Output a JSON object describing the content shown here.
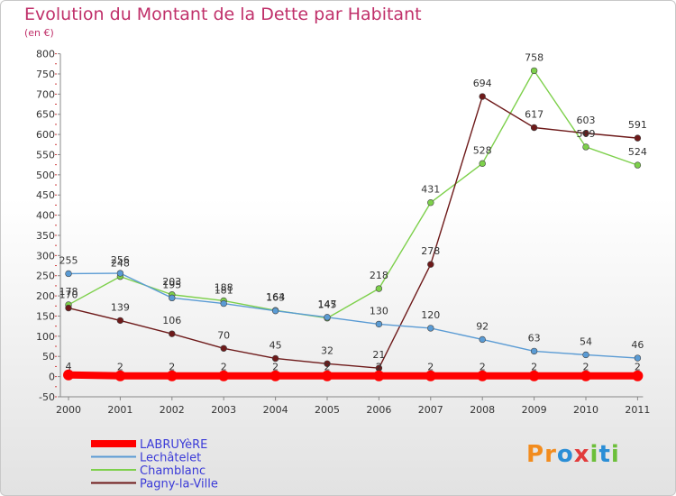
{
  "title": "Evolution du Montant de la Dette par Habitant",
  "subtitle": "(en €)",
  "logo": {
    "letters": [
      "P",
      "r",
      "o",
      "x",
      "i",
      "t",
      "i"
    ],
    "colors": [
      "#f28c1e",
      "#f28c1e",
      "#2a8ed6",
      "#e23b3b",
      "#6cbf3a",
      "#2a8ed6",
      "#6cbf3a"
    ]
  },
  "chart_data": {
    "type": "line",
    "x": [
      "2000",
      "2001",
      "2002",
      "2003",
      "2004",
      "2005",
      "2006",
      "2007",
      "2008",
      "2009",
      "2010",
      "2011"
    ],
    "ylim": [
      -50,
      800
    ],
    "ystep": 50,
    "grid": false,
    "legend": "bottom-left",
    "series": [
      {
        "name": "LABRUYèRE",
        "color": "#ff0000",
        "values": [
          4,
          2,
          2,
          2,
          2,
          2,
          2,
          2,
          2,
          2,
          2,
          2
        ],
        "labels": [
          "4",
          "2",
          "2",
          "2",
          "2",
          "2",
          "2",
          "2",
          "2",
          "2",
          "2",
          "2"
        ]
      },
      {
        "name": "Lechâtelet",
        "color": "#5a9bd4",
        "values": [
          255,
          256,
          195,
          181,
          163,
          147,
          130,
          120,
          92,
          63,
          54,
          46
        ],
        "labels": [
          "255",
          "256",
          "195",
          "181",
          "163",
          "147",
          "130",
          "120",
          "92",
          "63",
          "54",
          "46"
        ]
      },
      {
        "name": "Chamblanc",
        "color": "#7dd04b",
        "values": [
          178,
          248,
          203,
          188,
          164,
          145,
          218,
          431,
          528,
          758,
          569,
          524
        ],
        "labels": [
          "178",
          "248",
          "203",
          "188",
          "164",
          "145",
          "218",
          "431",
          "528",
          "758",
          "569",
          "524"
        ]
      },
      {
        "name": "Pagny-la-Ville",
        "color": "#6e1a1a",
        "values": [
          170,
          139,
          106,
          70,
          45,
          32,
          21,
          278,
          694,
          617,
          603,
          591
        ],
        "labels": [
          "170",
          "139",
          "106",
          "70",
          "45",
          "32",
          "21",
          "278",
          "694",
          "617",
          "603",
          "591"
        ]
      }
    ]
  }
}
